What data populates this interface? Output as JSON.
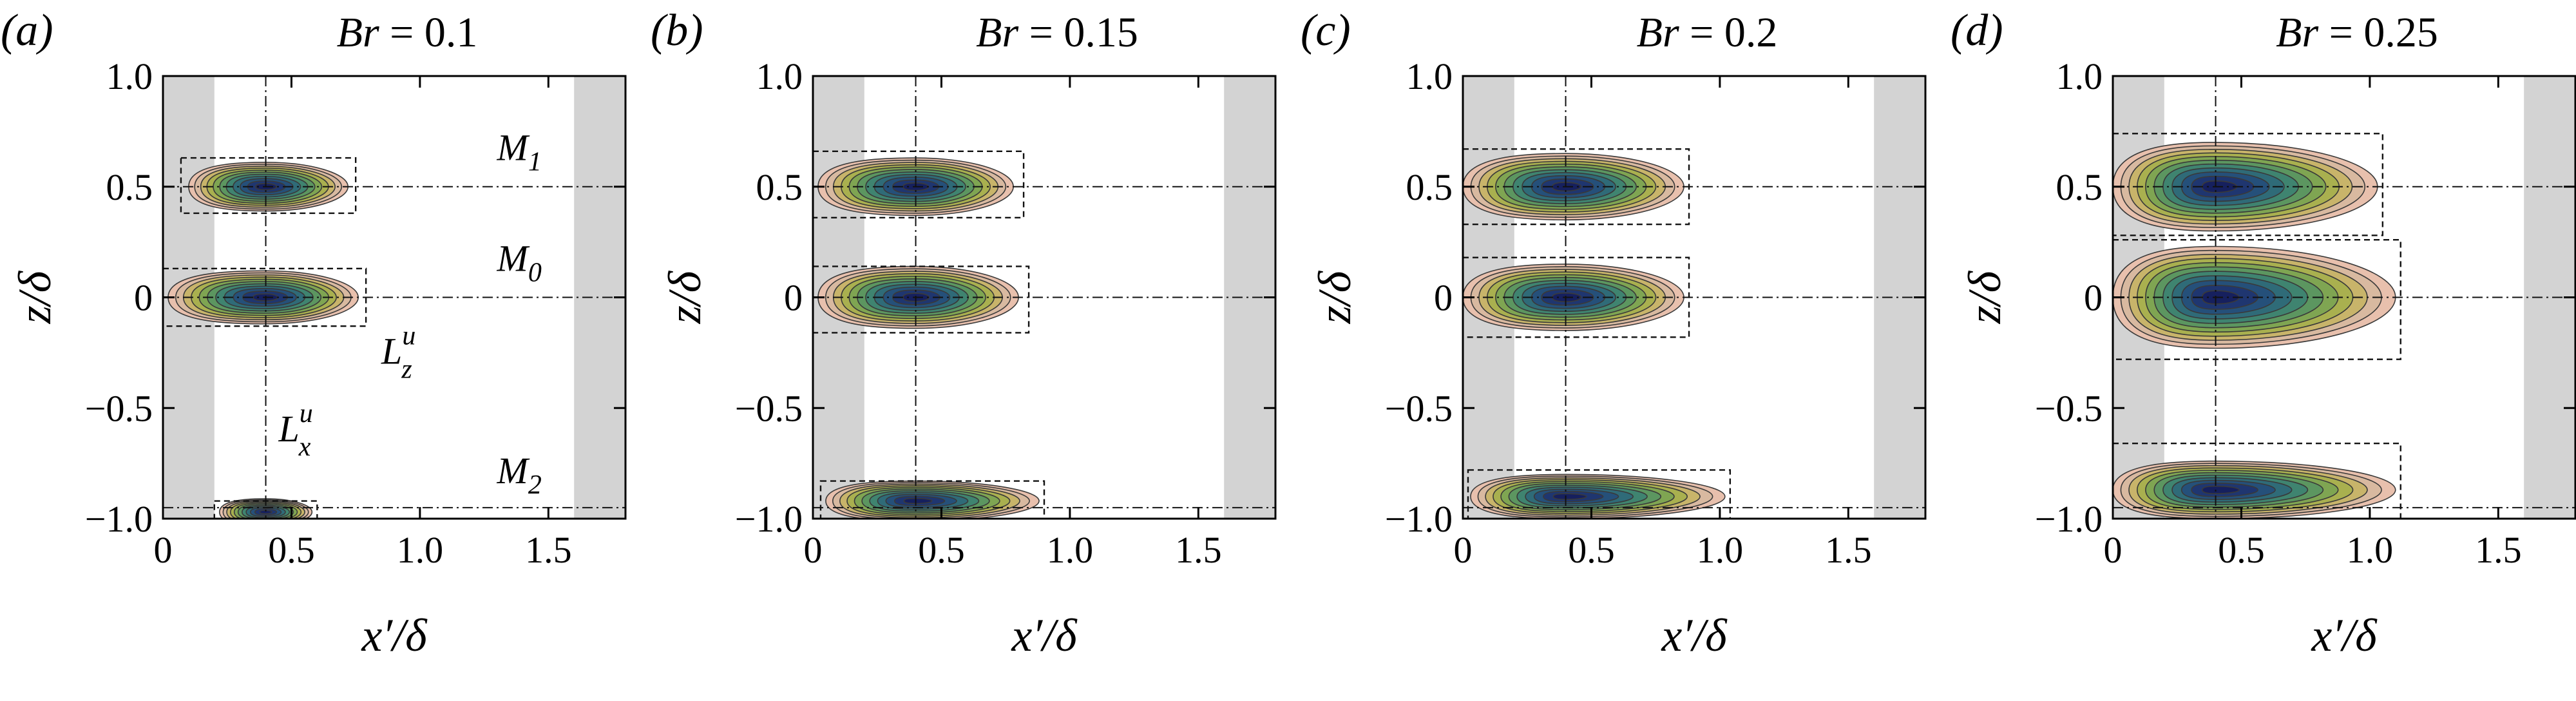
{
  "colors": {
    "frame": "#000000",
    "background": "#ffffff",
    "shaded_band": "#d3d3d3",
    "colormap": [
      "#e8c0ad",
      "#d8b9a0",
      "#c8b46a",
      "#a9b04f",
      "#7fa552",
      "#5c9660",
      "#3f8470",
      "#2f6b78",
      "#25507a",
      "#1f3670",
      "#16205e"
    ]
  },
  "chart_data": [
    {
      "type": "contour",
      "panel_label": "(a)",
      "title_var": "Br",
      "title_value": "= 0.1",
      "xlabel": "x′/δ",
      "ylabel": "z/δ",
      "xlim": [
        0,
        1.8
      ],
      "ylim": [
        -1.0,
        1.0
      ],
      "xticks": [
        0,
        0.5,
        1.0,
        1.5
      ],
      "xtick_labels": [
        "0",
        "0.5",
        "1.0",
        "1.5"
      ],
      "yticks": [
        1.0,
        0.5,
        0,
        -0.5,
        -1.0
      ],
      "ytick_labels": [
        "1.0",
        "0.5",
        "0",
        "−0.5",
        "−1.0"
      ],
      "shaded_bands": [
        [
          0,
          0.2
        ],
        [
          1.6,
          1.8
        ]
      ],
      "ref_x": 0.4,
      "ref_z": [
        0.5,
        0,
        -0.95
      ],
      "blobs": [
        {
          "name": "M1",
          "z0": 0.5,
          "x_left": 0.1,
          "x_right": 0.72,
          "half_height": 0.11,
          "box": [
            0.07,
            0.75,
            0.38,
            0.63
          ]
        },
        {
          "name": "M0",
          "z0": 0.0,
          "x_left": 0.02,
          "x_right": 0.76,
          "half_height": 0.12,
          "box": [
            0.0,
            0.79,
            -0.13,
            0.13
          ]
        },
        {
          "name": "M2",
          "z0": -0.97,
          "x_left": 0.22,
          "x_right": 0.58,
          "half_height": 0.06,
          "box": [
            0.2,
            0.6,
            -1.0,
            -0.92
          ]
        }
      ],
      "annotations": [
        {
          "text": "M",
          "sub": "1",
          "x": 1.3,
          "z": 0.62
        },
        {
          "text": "M",
          "sub": "0",
          "x": 1.3,
          "z": 0.12
        },
        {
          "text": "M",
          "sub": "2",
          "x": 1.3,
          "z": -0.84
        },
        {
          "text": "L",
          "sub": "x",
          "sup": "u",
          "x": 0.45,
          "z": -0.65
        },
        {
          "text": "L",
          "sub": "z",
          "sup": "u",
          "x": 0.85,
          "z": -0.3
        }
      ]
    },
    {
      "type": "contour",
      "panel_label": "(b)",
      "title_var": "Br",
      "title_value": "= 0.15",
      "xlabel": "x′/δ",
      "ylabel": "z/δ",
      "xlim": [
        0,
        1.8
      ],
      "ylim": [
        -1.0,
        1.0
      ],
      "xticks": [
        0,
        0.5,
        1.0,
        1.5
      ],
      "xtick_labels": [
        "0",
        "0.5",
        "1.0",
        "1.5"
      ],
      "yticks": [
        1.0,
        0.5,
        0,
        -0.5,
        -1.0
      ],
      "ytick_labels": [
        "1.0",
        "0.5",
        "0",
        "−0.5",
        "−1.0"
      ],
      "shaded_bands": [
        [
          0,
          0.2
        ],
        [
          1.6,
          1.8
        ]
      ],
      "ref_x": 0.4,
      "ref_z": [
        0.5,
        0,
        -0.95
      ],
      "blobs": [
        {
          "name": "M1",
          "z0": 0.5,
          "x_left": 0.02,
          "x_right": 0.78,
          "half_height": 0.13,
          "box": [
            0.0,
            0.82,
            0.36,
            0.66
          ]
        },
        {
          "name": "M0",
          "z0": 0.0,
          "x_left": 0.02,
          "x_right": 0.8,
          "half_height": 0.14,
          "box": [
            0.0,
            0.84,
            -0.16,
            0.14
          ]
        },
        {
          "name": "M2",
          "z0": -0.92,
          "x_left": 0.05,
          "x_right": 0.88,
          "half_height": 0.09,
          "box": [
            0.03,
            0.9,
            -1.0,
            -0.83
          ]
        }
      ],
      "annotations": []
    },
    {
      "type": "contour",
      "panel_label": "(c)",
      "title_var": "Br",
      "title_value": "= 0.2",
      "xlabel": "x′/δ",
      "ylabel": "z/δ",
      "xlim": [
        0,
        1.8
      ],
      "ylim": [
        -1.0,
        1.0
      ],
      "xticks": [
        0,
        0.5,
        1.0,
        1.5
      ],
      "xtick_labels": [
        "0",
        "0.5",
        "1.0",
        "1.5"
      ],
      "yticks": [
        1.0,
        0.5,
        0,
        -0.5,
        -1.0
      ],
      "ytick_labels": [
        "1.0",
        "0.5",
        "0",
        "−0.5",
        "−1.0"
      ],
      "shaded_bands": [
        [
          0,
          0.2
        ],
        [
          1.6,
          1.8
        ]
      ],
      "ref_x": 0.4,
      "ref_z": [
        0.5,
        0,
        -0.95
      ],
      "blobs": [
        {
          "name": "M1",
          "z0": 0.5,
          "x_left": 0.0,
          "x_right": 0.86,
          "half_height": 0.15,
          "box": [
            0.0,
            0.88,
            0.33,
            0.67
          ]
        },
        {
          "name": "M0",
          "z0": 0.0,
          "x_left": 0.0,
          "x_right": 0.86,
          "half_height": 0.15,
          "box": [
            0.0,
            0.88,
            -0.18,
            0.18
          ]
        },
        {
          "name": "M2",
          "z0": -0.9,
          "x_left": 0.03,
          "x_right": 1.02,
          "half_height": 0.1,
          "box": [
            0.02,
            1.04,
            -1.0,
            -0.78
          ]
        }
      ],
      "annotations": []
    },
    {
      "type": "contour",
      "panel_label": "(d)",
      "title_var": "Br",
      "title_value": "= 0.25",
      "xlabel": "x′/δ",
      "ylabel": "z/δ",
      "xlim": [
        0,
        1.8
      ],
      "ylim": [
        -1.0,
        1.0
      ],
      "xticks": [
        0,
        0.5,
        1.0,
        1.5
      ],
      "xtick_labels": [
        "0",
        "0.5",
        "1.0",
        "1.5"
      ],
      "yticks": [
        1.0,
        0.5,
        0,
        -0.5,
        -1.0
      ],
      "ytick_labels": [
        "1.0",
        "0.5",
        "0",
        "−0.5",
        "−1.0"
      ],
      "shaded_bands": [
        [
          0,
          0.2
        ],
        [
          1.6,
          1.8
        ]
      ],
      "ref_x": 0.4,
      "ref_z": [
        0.5,
        0,
        -0.95
      ],
      "blobs": [
        {
          "name": "M1",
          "z0": 0.5,
          "x_left": 0.0,
          "x_right": 1.03,
          "half_height": 0.2,
          "box": [
            0.0,
            1.05,
            0.28,
            0.74
          ]
        },
        {
          "name": "M0",
          "z0": 0.0,
          "x_left": 0.0,
          "x_right": 1.1,
          "half_height": 0.23,
          "box": [
            0.0,
            1.12,
            -0.28,
            0.26
          ]
        },
        {
          "name": "M2",
          "z0": -0.87,
          "x_left": 0.0,
          "x_right": 1.1,
          "half_height": 0.13,
          "box": [
            0.0,
            1.12,
            -1.0,
            -0.66
          ]
        }
      ],
      "annotations": []
    }
  ]
}
